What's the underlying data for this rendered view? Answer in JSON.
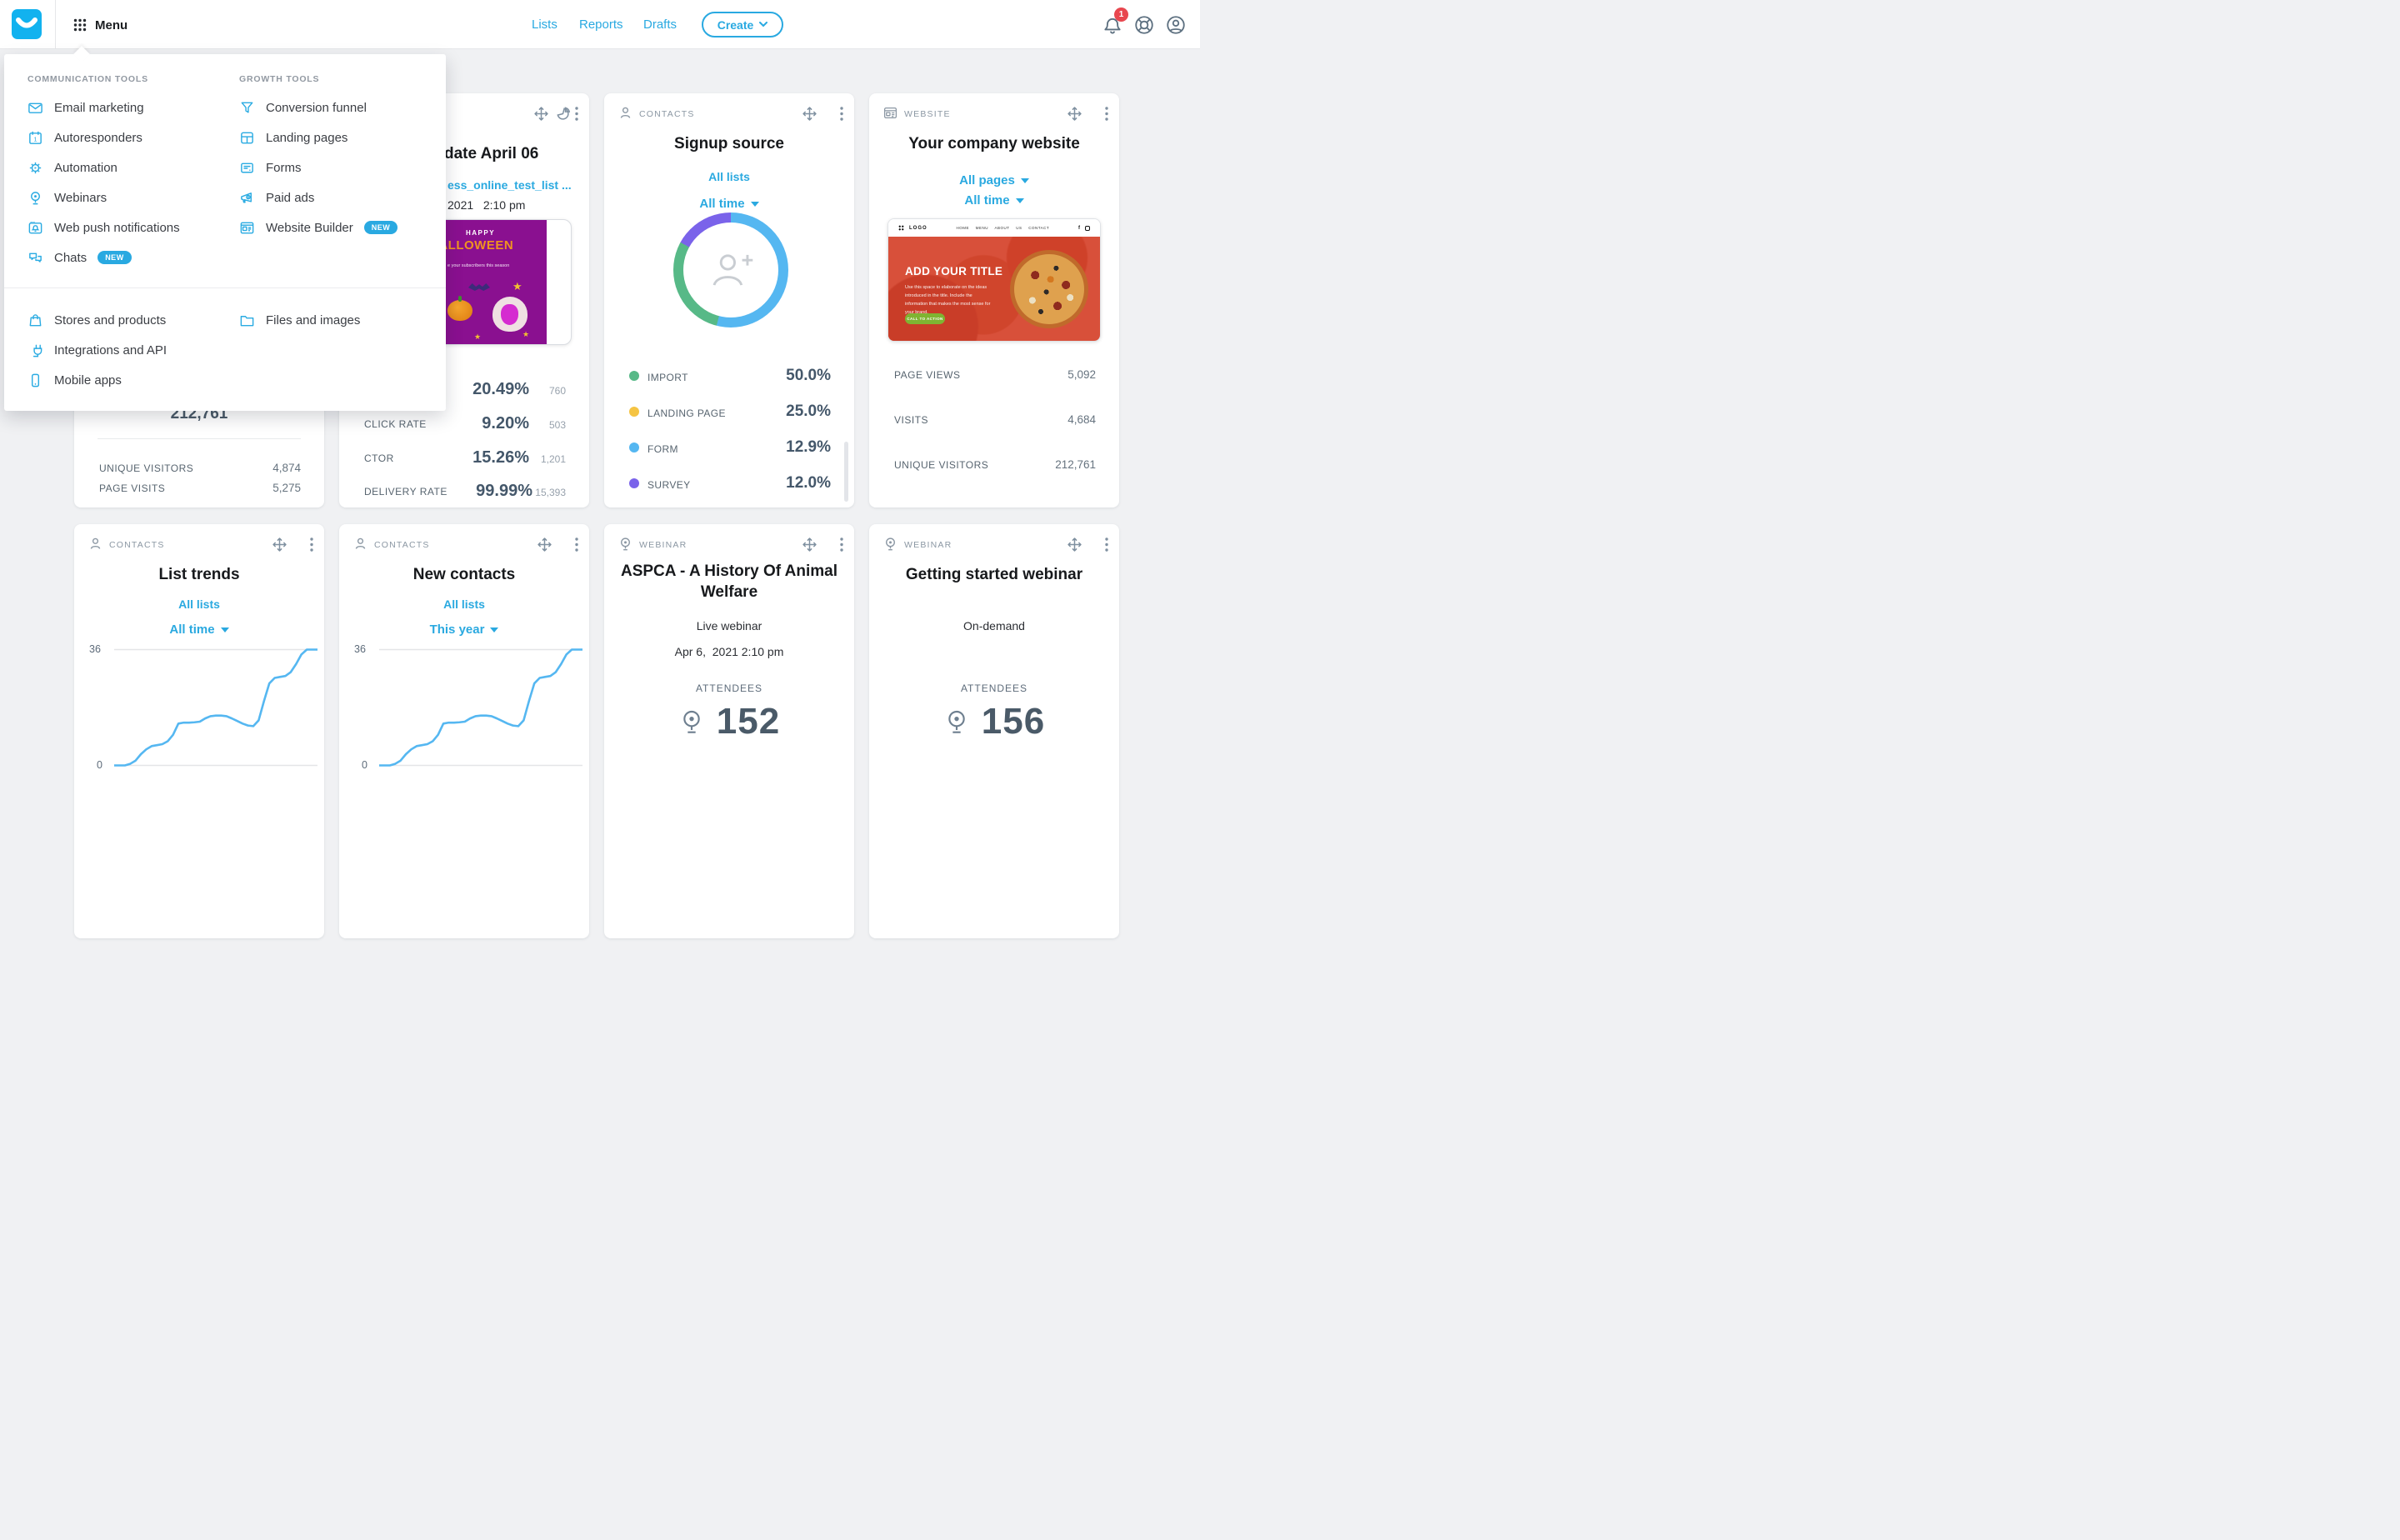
{
  "header": {
    "menu_label": "Menu",
    "nav_links": [
      "Lists",
      "Reports",
      "Drafts"
    ],
    "create_label": "Create",
    "notification_count": "1"
  },
  "menu": {
    "sections": [
      {
        "title": "COMMUNICATION TOOLS",
        "items": [
          {
            "label": "Email marketing",
            "icon": "email-icon"
          },
          {
            "label": "Autoresponders",
            "icon": "autoresponders-icon"
          },
          {
            "label": "Automation",
            "icon": "automation-icon"
          },
          {
            "label": "Webinars",
            "icon": "webinars-icon"
          },
          {
            "label": "Web push notifications",
            "icon": "web-push-icon"
          },
          {
            "label": "Chats",
            "icon": "chats-icon",
            "badge": "NEW"
          }
        ]
      },
      {
        "title": "GROWTH TOOLS",
        "items": [
          {
            "label": "Conversion funnel",
            "icon": "funnel-icon"
          },
          {
            "label": "Landing pages",
            "icon": "landing-pages-icon"
          },
          {
            "label": "Forms",
            "icon": "forms-icon"
          },
          {
            "label": "Paid ads",
            "icon": "paid-ads-icon"
          },
          {
            "label": "Website Builder",
            "icon": "website-builder-icon",
            "badge": "NEW"
          }
        ]
      }
    ],
    "footer_items": [
      {
        "label": "Stores and products",
        "icon": "stores-icon"
      },
      {
        "label": "Integrations and API",
        "icon": "integrations-icon"
      },
      {
        "label": "Mobile apps",
        "icon": "mobile-apps-icon"
      },
      {
        "label": "Files and images",
        "icon": "files-icon"
      }
    ]
  },
  "cards": {
    "landing_stats": {
      "big_number": "212,761",
      "rows": [
        {
          "label": "UNIQUE VISITORS",
          "value": "4,874"
        },
        {
          "label": "PAGE VISITS",
          "value": "5,275"
        }
      ]
    },
    "newsletter": {
      "title_visible": "date April 06",
      "list_link_visible": "ess_online_test_list ...",
      "datetime_visible": "2021   2:10 pm",
      "preview": {
        "kicker": "HAPPY",
        "headline": "HALLOWEEN",
        "caption": "e your subscribers this season"
      },
      "stats": [
        {
          "label": "",
          "pct": "20.49%",
          "count": "760"
        },
        {
          "label": "CLICK RATE",
          "pct": "9.20%",
          "count": "503"
        },
        {
          "label": "CTOR",
          "pct": "15.26%",
          "count": "1,201"
        },
        {
          "label": "DELIVERY RATE",
          "pct": "99.99%",
          "count": "15,393"
        }
      ]
    },
    "signup": {
      "category": "CONTACTS",
      "title": "Signup source",
      "list_link": "All lists",
      "time_filter": "All time",
      "legend": [
        {
          "label": "IMPORT",
          "pct": "50.0%"
        },
        {
          "label": "LANDING PAGE",
          "pct": "25.0%"
        },
        {
          "label": "FORM",
          "pct": "12.9%"
        },
        {
          "label": "SURVEY",
          "pct": "12.0%"
        }
      ]
    },
    "website": {
      "category": "WEBSITE",
      "title": "Your company website",
      "page_filter": "All pages",
      "time_filter": "All time",
      "preview": {
        "logo": "LOGO",
        "nav": "HOME MENU ABOUT US CONTACT",
        "headline": "ADD YOUR TITLE",
        "body": "Use this space to elaborate on the ideas introduced in the title. Include the information that makes the most sense for your brand.",
        "cta": "CALL TO ACTION"
      },
      "stats": [
        {
          "label": "PAGE VIEWS",
          "value": "5,092"
        },
        {
          "label": "VISITS",
          "value": "4,684"
        },
        {
          "label": "UNIQUE VISITORS",
          "value": "212,761"
        }
      ]
    },
    "list_trends": {
      "category": "CONTACTS",
      "title": "List trends",
      "list_link": "All lists",
      "time_filter": "All time",
      "y_max": "36",
      "y_min": "0"
    },
    "new_contacts": {
      "category": "CONTACTS",
      "title": "New contacts",
      "list_link": "All lists",
      "time_filter": "This year",
      "y_max": "36",
      "y_min": "0"
    },
    "aspca_webinar": {
      "category": "WEBINAR",
      "title_line1": "ASPCA - A History Of Animal",
      "title_line2": "Welfare",
      "subtitle": "Live webinar",
      "datetime": "Apr 6,  2021 2:10 pm",
      "attendees_label": "ATTENDEES",
      "attendees": "152"
    },
    "getting_started_webinar": {
      "category": "WEBINAR",
      "title": "Getting started webinar",
      "subtitle": "On-demand",
      "attendees_label": "ATTENDEES",
      "attendees": "156"
    }
  },
  "chart_data": [
    {
      "id": "list-trends",
      "type": "line",
      "title": "List trends",
      "xlabel": "time (All time)",
      "ylabel": "contacts",
      "ylim": [
        0,
        36
      ],
      "grid": "horizontal top/bottom only",
      "legend_position": "none",
      "values": [
        0,
        0,
        0,
        0.5,
        1.5,
        3.5,
        5,
        6,
        6.3,
        6.6,
        7.5,
        9.5,
        13,
        13.3,
        13.3,
        13.4,
        13.6,
        14.6,
        15.3,
        15.5,
        15.5,
        15.3,
        14.6,
        13.8,
        13,
        12.4,
        12.2,
        14,
        20,
        25.5,
        27.2,
        27.5,
        27.8,
        29,
        31.5,
        34.5,
        36,
        36,
        36
      ]
    },
    {
      "id": "new-contacts",
      "type": "line",
      "title": "New contacts",
      "xlabel": "time (This year)",
      "ylabel": "contacts",
      "ylim": [
        0,
        36
      ],
      "grid": "horizontal top/bottom only",
      "legend_position": "none",
      "values": [
        0,
        0,
        0,
        0.5,
        1.5,
        3.5,
        5,
        6,
        6.3,
        6.6,
        7.5,
        9.5,
        13,
        13.3,
        13.3,
        13.4,
        13.6,
        14.6,
        15.3,
        15.5,
        15.5,
        15.3,
        14.6,
        13.8,
        13,
        12.4,
        12.2,
        14,
        20,
        25.5,
        27.2,
        27.5,
        27.8,
        29,
        31.5,
        34.5,
        36,
        36,
        36
      ]
    },
    {
      "id": "signup-source",
      "type": "pie",
      "title": "Signup source",
      "labels": [
        "IMPORT",
        "LANDING PAGE",
        "FORM",
        "SURVEY"
      ],
      "values": [
        50.0,
        25.0,
        12.9,
        12.0
      ],
      "colors": [
        "#57b987",
        "#f5c443",
        "#55b7f1",
        "#7a63ea"
      ],
      "legend_position": "below",
      "ring_render": [
        {
          "color": "#55b7f1",
          "pct": 54
        },
        {
          "color": "#57b987",
          "pct": 29
        },
        {
          "color": "#7a63ea",
          "pct": 17
        }
      ]
    }
  ],
  "colors": {
    "accent_blue": "#29a9e1",
    "badge_red": "#e8474f",
    "stat_value": "#44576a",
    "background": "#f0f1f3"
  }
}
